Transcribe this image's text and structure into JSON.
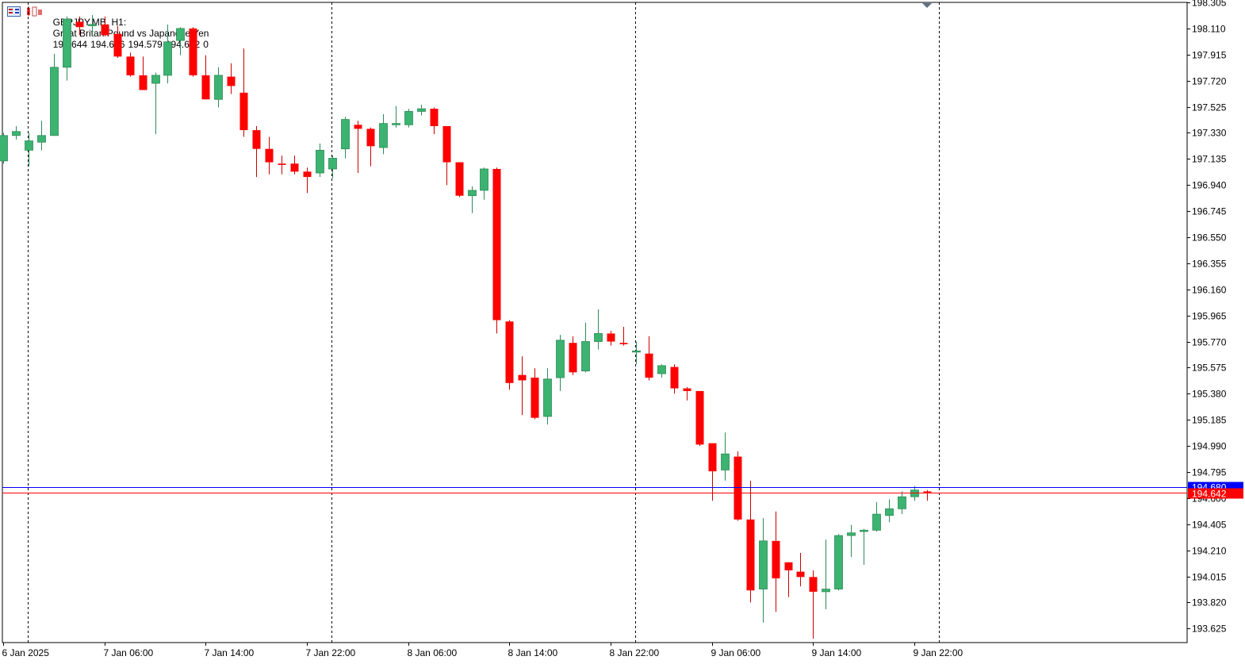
{
  "header": {
    "symbol": "GBPJPY.MB, H1:",
    "description": "Great Britan Pound vs Japanese Yen",
    "open": "194.644",
    "high": "194.646",
    "low": "194.579",
    "close": "194.642",
    "volume": "0"
  },
  "icons": [
    "one-click-trading-icon",
    "chart-trade-icon"
  ],
  "colors": {
    "bull": "#3cb371",
    "bear": "#ff0000",
    "bid_line": "#ff0000",
    "ask_line": "#0000ff",
    "separator": "#000000",
    "background": "#ffffff"
  },
  "price_labels": {
    "ask": "194.680",
    "bid": "194.642"
  },
  "chart_data": {
    "type": "candlestick",
    "title": "GBPJPY.MB, H1",
    "ylim": [
      193.52,
      198.305
    ],
    "y_ticks": [
      "198.305",
      "198.110",
      "197.915",
      "197.720",
      "197.525",
      "197.330",
      "197.135",
      "196.940",
      "196.745",
      "196.550",
      "196.355",
      "196.160",
      "195.965",
      "195.770",
      "195.575",
      "195.380",
      "195.185",
      "194.990",
      "194.795",
      "194.600",
      "194.405",
      "194.210",
      "194.015",
      "193.820",
      "193.625"
    ],
    "x_ticks": [
      "6 Jan 2025",
      "7 Jan 06:00",
      "7 Jan 14:00",
      "7 Jan 22:00",
      "8 Jan 06:00",
      "8 Jan 14:00",
      "8 Jan 22:00",
      "9 Jan 06:00",
      "9 Jan 14:00",
      "9 Jan 22:00"
    ],
    "x_tick_bars": [
      0,
      8,
      16,
      24,
      32,
      40,
      48,
      56,
      64,
      72
    ],
    "day_separator_bars": [
      2,
      26,
      50,
      74
    ],
    "series": [
      {
        "name": "GBPJPY.MB",
        "ohlc": [
          [
            197.12,
            197.33,
            197.1,
            197.31
          ],
          [
            197.31,
            197.38,
            197.28,
            197.34
          ],
          [
            197.2,
            197.33,
            197.08,
            197.27
          ],
          [
            197.26,
            197.42,
            197.2,
            197.31
          ],
          [
            197.31,
            197.92,
            197.31,
            197.82
          ],
          [
            197.82,
            198.2,
            197.72,
            198.18
          ],
          [
            198.16,
            198.2,
            198.06,
            198.12
          ],
          [
            198.13,
            198.21,
            198.05,
            198.14
          ],
          [
            198.14,
            198.2,
            198.05,
            198.06
          ],
          [
            198.07,
            198.13,
            197.89,
            197.9
          ],
          [
            197.9,
            197.93,
            197.75,
            197.76
          ],
          [
            197.76,
            197.9,
            197.65,
            197.65
          ],
          [
            197.7,
            197.78,
            197.32,
            197.76
          ],
          [
            197.76,
            198.14,
            197.7,
            198.01
          ],
          [
            198.02,
            198.12,
            197.91,
            198.11
          ],
          [
            198.11,
            198.12,
            197.75,
            197.76
          ],
          [
            197.76,
            197.91,
            197.58,
            197.58
          ],
          [
            197.58,
            197.82,
            197.52,
            197.76
          ],
          [
            197.75,
            197.85,
            197.62,
            197.68
          ],
          [
            197.63,
            197.96,
            197.3,
            197.35
          ],
          [
            197.35,
            197.38,
            197.0,
            197.21
          ],
          [
            197.21,
            197.3,
            197.02,
            197.11
          ],
          [
            197.1,
            197.16,
            197.02,
            197.09
          ],
          [
            197.1,
            197.16,
            197.02,
            197.04
          ],
          [
            197.04,
            197.07,
            196.88,
            197.0
          ],
          [
            197.03,
            197.25,
            197.0,
            197.2
          ],
          [
            197.06,
            197.16,
            196.99,
            197.14
          ],
          [
            197.21,
            197.45,
            197.14,
            197.43
          ],
          [
            197.39,
            197.42,
            197.03,
            197.36
          ],
          [
            197.36,
            197.37,
            197.08,
            197.23
          ],
          [
            197.22,
            197.47,
            197.17,
            197.4
          ],
          [
            197.39,
            197.53,
            197.37,
            197.4
          ],
          [
            197.39,
            197.51,
            197.37,
            197.49
          ],
          [
            197.49,
            197.54,
            197.46,
            197.51
          ],
          [
            197.51,
            197.52,
            197.32,
            197.38
          ],
          [
            197.38,
            197.38,
            196.94,
            197.11
          ],
          [
            197.11,
            197.11,
            196.85,
            196.86
          ],
          [
            196.86,
            196.93,
            196.73,
            196.9
          ],
          [
            196.9,
            197.07,
            196.83,
            197.06
          ],
          [
            197.06,
            197.07,
            195.83,
            195.93
          ],
          [
            195.92,
            195.93,
            195.41,
            195.46
          ],
          [
            195.52,
            195.66,
            195.22,
            195.48
          ],
          [
            195.5,
            195.57,
            195.19,
            195.2
          ],
          [
            195.21,
            195.57,
            195.15,
            195.49
          ],
          [
            195.5,
            195.82,
            195.4,
            195.78
          ],
          [
            195.76,
            195.81,
            195.52,
            195.54
          ],
          [
            195.55,
            195.91,
            195.54,
            195.77
          ],
          [
            195.77,
            196.01,
            195.71,
            195.83
          ],
          [
            195.83,
            195.85,
            195.74,
            195.77
          ],
          [
            195.76,
            195.88,
            195.74,
            195.75
          ],
          [
            195.7,
            195.77,
            195.6,
            195.7
          ],
          [
            195.68,
            195.81,
            195.48,
            195.5
          ],
          [
            195.53,
            195.6,
            195.5,
            195.59
          ],
          [
            195.58,
            195.6,
            195.38,
            195.42
          ],
          [
            195.42,
            195.43,
            195.33,
            195.4
          ],
          [
            195.4,
            195.4,
            194.99,
            195.0
          ],
          [
            195.01,
            195.01,
            194.58,
            194.8
          ],
          [
            194.81,
            195.09,
            194.73,
            194.93
          ],
          [
            194.91,
            194.95,
            194.43,
            194.44
          ],
          [
            194.44,
            194.73,
            193.82,
            193.91
          ],
          [
            193.92,
            194.45,
            193.67,
            194.28
          ],
          [
            194.28,
            194.5,
            193.75,
            194.0
          ],
          [
            194.12,
            194.12,
            193.86,
            194.06
          ],
          [
            194.05,
            194.19,
            193.94,
            194.01
          ],
          [
            194.01,
            194.06,
            193.55,
            193.9
          ],
          [
            193.9,
            194.29,
            193.77,
            193.92
          ],
          [
            193.92,
            194.33,
            193.91,
            194.32
          ],
          [
            194.32,
            194.4,
            194.16,
            194.34
          ],
          [
            194.35,
            194.37,
            194.1,
            194.36
          ],
          [
            194.36,
            194.57,
            194.35,
            194.48
          ],
          [
            194.47,
            194.59,
            194.42,
            194.52
          ],
          [
            194.52,
            194.65,
            194.48,
            194.61
          ],
          [
            194.61,
            194.69,
            194.58,
            194.66
          ],
          [
            194.65,
            194.66,
            194.58,
            194.64
          ]
        ]
      }
    ]
  }
}
